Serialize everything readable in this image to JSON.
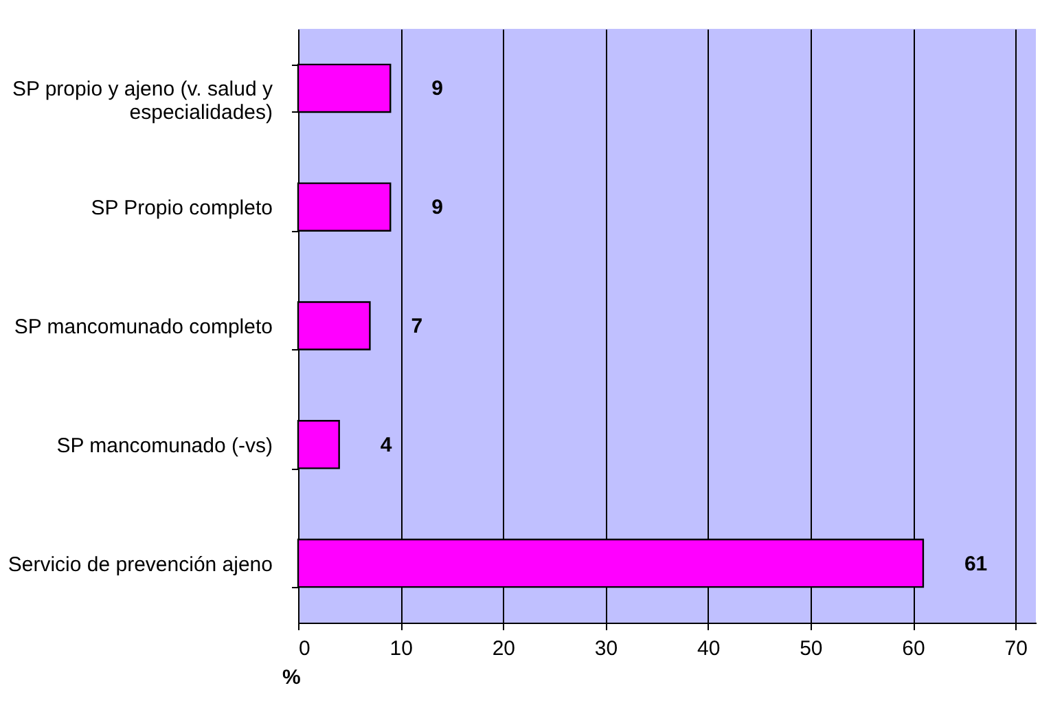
{
  "chart_data": {
    "type": "bar",
    "orientation": "horizontal",
    "xlabel": "%",
    "categories": [
      "SP propio y ajeno (v. salud y especialidades)",
      "SP Propio completo",
      "SP mancomunado completo",
      "SP mancomunado (-vs)",
      "Servicio de prevención ajeno"
    ],
    "values": [
      9,
      9,
      7,
      4,
      61
    ],
    "color": "#ff00ff",
    "data_labels": true,
    "xlim": [
      0,
      72
    ],
    "xticks": [
      0,
      10,
      20,
      30,
      40,
      50,
      60,
      70
    ],
    "grid": "x"
  }
}
